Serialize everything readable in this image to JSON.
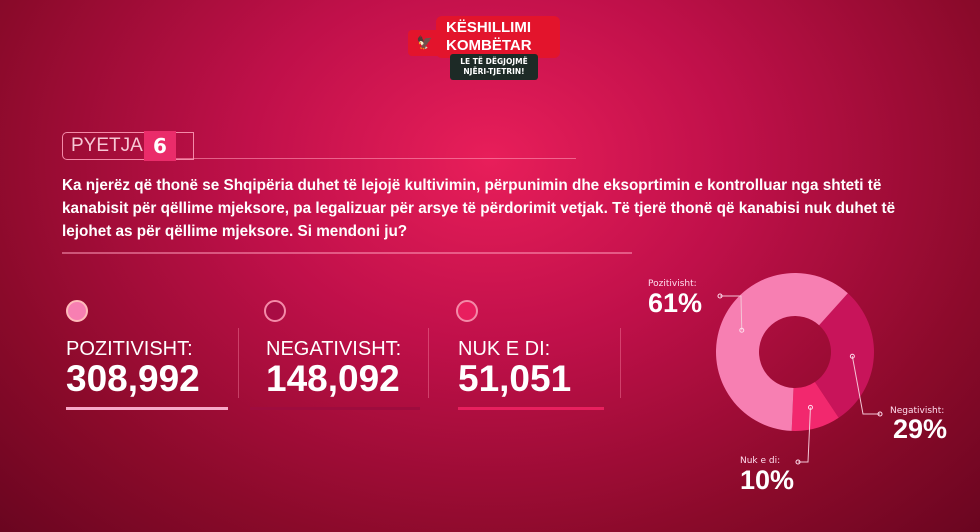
{
  "logo": {
    "title_line1": "KËSHILLIMI",
    "title_line2": "KOMBËTAR",
    "subtitle_line1": "LE TË DËGJOJMË",
    "subtitle_line2": "NJËRI-TJETRIN!"
  },
  "question": {
    "tag": "PYETJA",
    "number": "6",
    "text": "Ka njerëz që thonë se Shqipëria duhet të lejojë kultivimin, përpunimin dhe eksoprtimin e kontrolluar nga shteti të kanabisit për qëllime mjeksore, pa legalizuar për arsye të përdorimit vetjak. Të tjerë thonë që kanabisi nuk duhet të lejohet as për qëllime mjeksore. Si mendoni ju?"
  },
  "stats": [
    {
      "label": "POZITIVISHT:",
      "value": "308,992",
      "color": "#f77fb2"
    },
    {
      "label": "NEGATIVISHT:",
      "value": "148,092",
      "color": "#c8145a"
    },
    {
      "label": "NUK E DI:",
      "value": "51,051",
      "color": "#f2286e"
    }
  ],
  "chart_data": {
    "type": "pie",
    "donut": true,
    "categories": [
      "Pozitivisht:",
      "Negativisht:",
      "Nuk e di:"
    ],
    "values": [
      61,
      29,
      10
    ],
    "value_labels": [
      "61%",
      "29%",
      "10%"
    ],
    "colors": [
      "#f77fb2",
      "#c8145a",
      "#f2286e"
    ]
  }
}
